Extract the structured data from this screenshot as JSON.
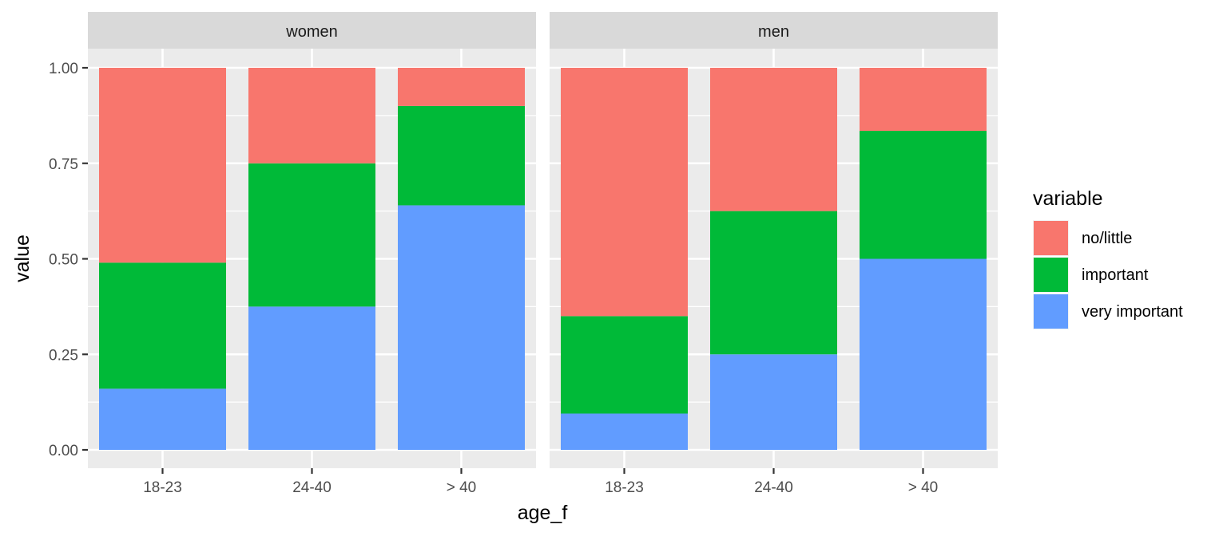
{
  "chart_data": {
    "type": "bar",
    "stacked": true,
    "xlabel": "age_f",
    "ylabel": "value",
    "ylim": [
      0,
      1
    ],
    "yticks": [
      "0.00",
      "0.25",
      "0.50",
      "0.75",
      "1.00"
    ],
    "categories": [
      "18-23",
      "24-40",
      "> 40"
    ],
    "legend": {
      "title": "variable",
      "placement": "right",
      "items": [
        "no/little",
        "important",
        "very important"
      ]
    },
    "colors": {
      "no/little": "#F8766D",
      "important": "#00BA38",
      "very important": "#619CFF"
    },
    "facets": [
      {
        "label": "women",
        "series": [
          {
            "name": "very important",
            "values": [
              0.16,
              0.375,
              0.64
            ]
          },
          {
            "name": "important",
            "values": [
              0.33,
              0.375,
              0.26
            ]
          },
          {
            "name": "no/little",
            "values": [
              0.51,
              0.25,
              0.1
            ]
          }
        ]
      },
      {
        "label": "men",
        "series": [
          {
            "name": "very important",
            "values": [
              0.095,
              0.25,
              0.5
            ]
          },
          {
            "name": "important",
            "values": [
              0.255,
              0.375,
              0.335
            ]
          },
          {
            "name": "no/little",
            "values": [
              0.65,
              0.375,
              0.165
            ]
          }
        ]
      }
    ],
    "grid": true
  }
}
